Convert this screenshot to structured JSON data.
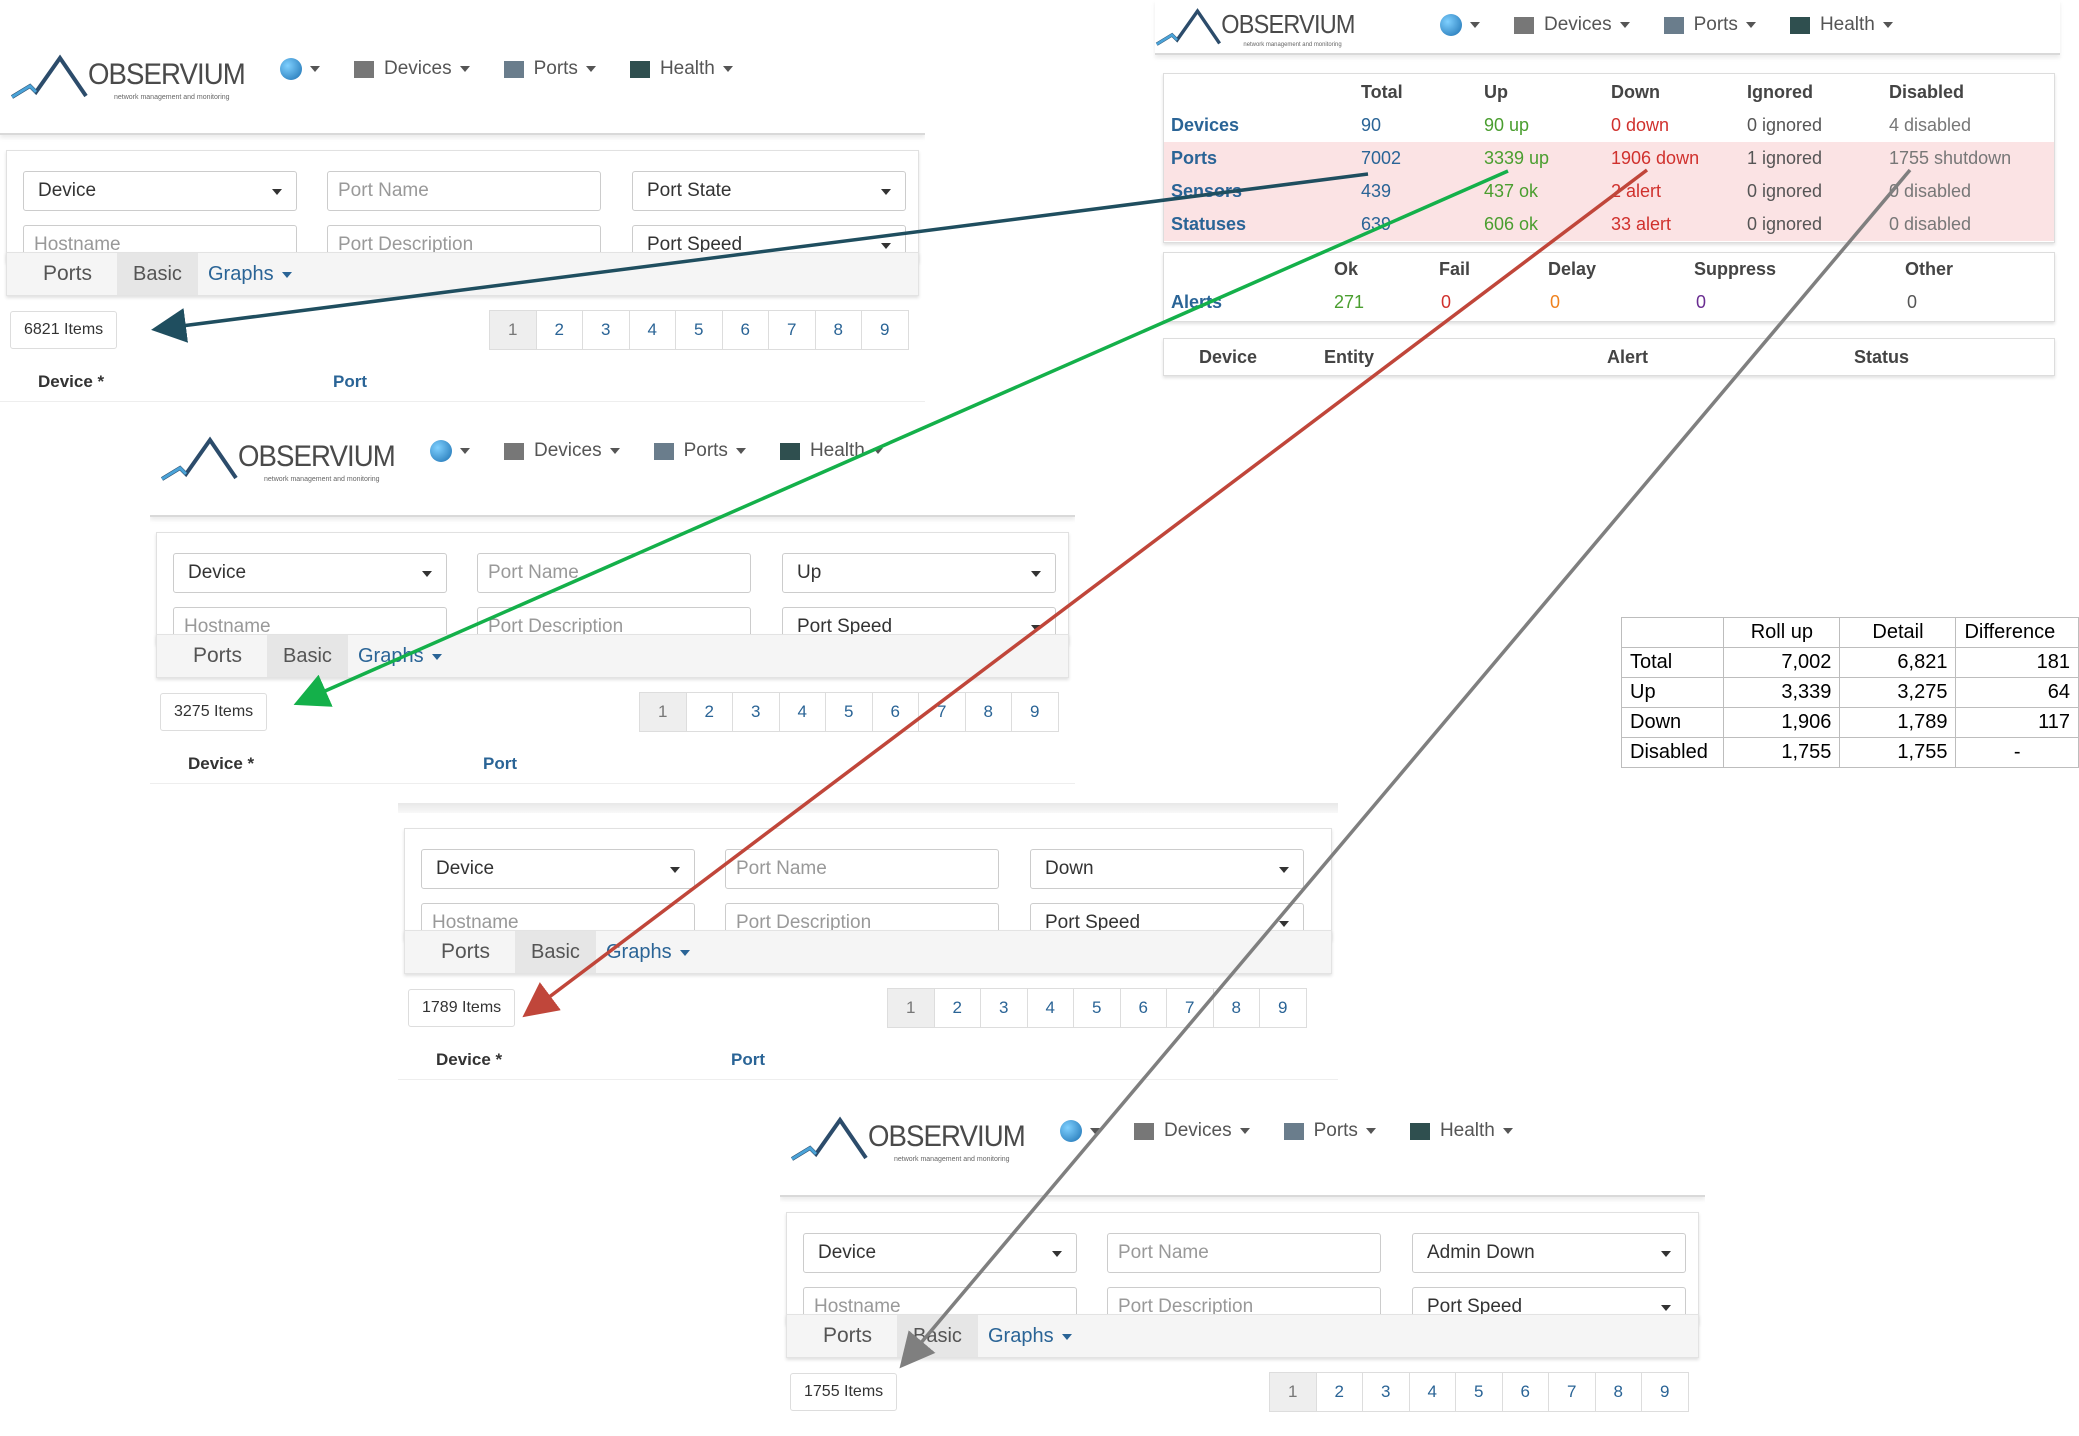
{
  "brand": {
    "name": "OBSERVIUM",
    "tagline": "network management and monitoring"
  },
  "nav": {
    "devices": "Devices",
    "ports": "Ports",
    "health": "Health"
  },
  "filters": {
    "device": "Device",
    "port_name": "Port Name",
    "hostname": "Hostname",
    "port_description": "Port Description",
    "port_speed": "Port Speed"
  },
  "tabs": {
    "ports": "Ports",
    "basic": "Basic",
    "graphs": "Graphs"
  },
  "table_headers": {
    "device": "Device *",
    "port": "Port"
  },
  "pages": [
    "1",
    "2",
    "3",
    "4",
    "5",
    "6",
    "7",
    "8",
    "9"
  ],
  "panels": [
    {
      "port_state": "Port State",
      "items": "6821 Items"
    },
    {
      "port_state": "Up",
      "items": "3275 Items"
    },
    {
      "port_state": "Down",
      "items": "1789 Items"
    },
    {
      "port_state": "Admin Down",
      "items": "1755 Items"
    }
  ],
  "summary": {
    "headers": {
      "total": "Total",
      "up": "Up",
      "down": "Down",
      "ignored": "Ignored",
      "disabled": "Disabled"
    },
    "rows": [
      {
        "label": "Devices",
        "total": "90",
        "up": "90 up",
        "down": "0 down",
        "ignored": "0 ignored",
        "disabled": "4 disabled"
      },
      {
        "label": "Ports",
        "total": "7002",
        "up": "3339 up",
        "down": "1906 down",
        "ignored": "1 ignored",
        "disabled": "1755 shutdown"
      },
      {
        "label": "Sensors",
        "total": "439",
        "up": "437 ok",
        "down": "2 alert",
        "ignored": "0 ignored",
        "disabled": "0 disabled"
      },
      {
        "label": "Statuses",
        "total": "639",
        "up": "606 ok",
        "down": "33 alert",
        "ignored": "0 ignored",
        "disabled": "0 disabled"
      }
    ],
    "alerts_headers": {
      "ok": "Ok",
      "fail": "Fail",
      "delay": "Delay",
      "suppress": "Suppress",
      "other": "Other"
    },
    "alerts": {
      "label": "Alerts",
      "ok": "271",
      "fail": "0",
      "delay": "0",
      "suppress": "0",
      "other": "0"
    },
    "alert_table_headers": {
      "device": "Device",
      "entity": "Entity",
      "alert": "Alert",
      "status": "Status"
    }
  },
  "comparison": {
    "headers": [
      "",
      "Roll up",
      "Detail",
      "Difference"
    ],
    "rows": [
      [
        "Total",
        "7,002",
        "6,821",
        "181"
      ],
      [
        "Up",
        "3,339",
        "3,275",
        "64"
      ],
      [
        "Down",
        "1,906",
        "1,789",
        "117"
      ],
      [
        "Disabled",
        "1,755",
        "1,755",
        "-"
      ]
    ]
  },
  "arrow_colors": {
    "total": "#1f4e5f",
    "up": "#14b04a",
    "down": "#c0463a",
    "disabled": "#7f7f7f"
  }
}
